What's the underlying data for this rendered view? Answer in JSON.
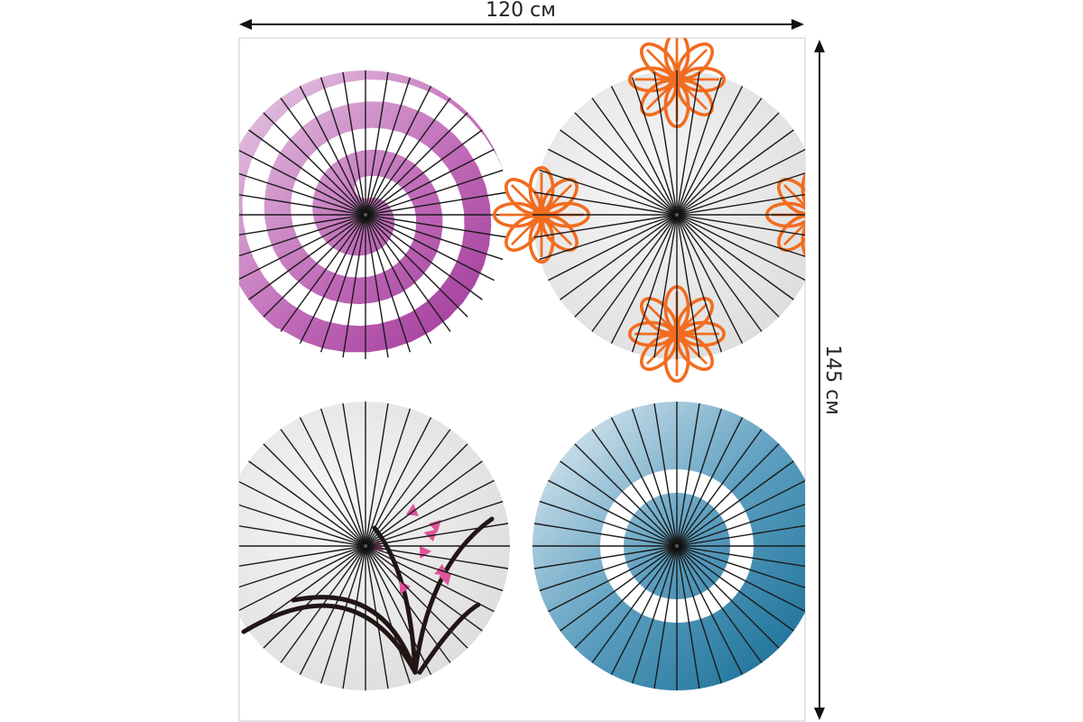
{
  "dimensions": {
    "width_label": "120 см",
    "height_label": "145 см"
  },
  "colors": {
    "frame": "#cccccc",
    "arrow": "#111111",
    "rib": "#1a1a1a",
    "canopy_gray": "#e9e9e9",
    "purple": "#a63fa0",
    "purple_light": "#e8cfe6",
    "orange": "#f26c1f",
    "blue": "#1d77a0",
    "blue_light": "#dce8f0",
    "pink": "#e0539b"
  },
  "panels": [
    {
      "name": "purple-spiral-umbrella",
      "pattern": "spiral"
    },
    {
      "name": "orange-flower-umbrella",
      "pattern": "flowers"
    },
    {
      "name": "orchid-umbrella",
      "pattern": "orchid"
    },
    {
      "name": "blue-ring-umbrella",
      "pattern": "ring"
    }
  ]
}
